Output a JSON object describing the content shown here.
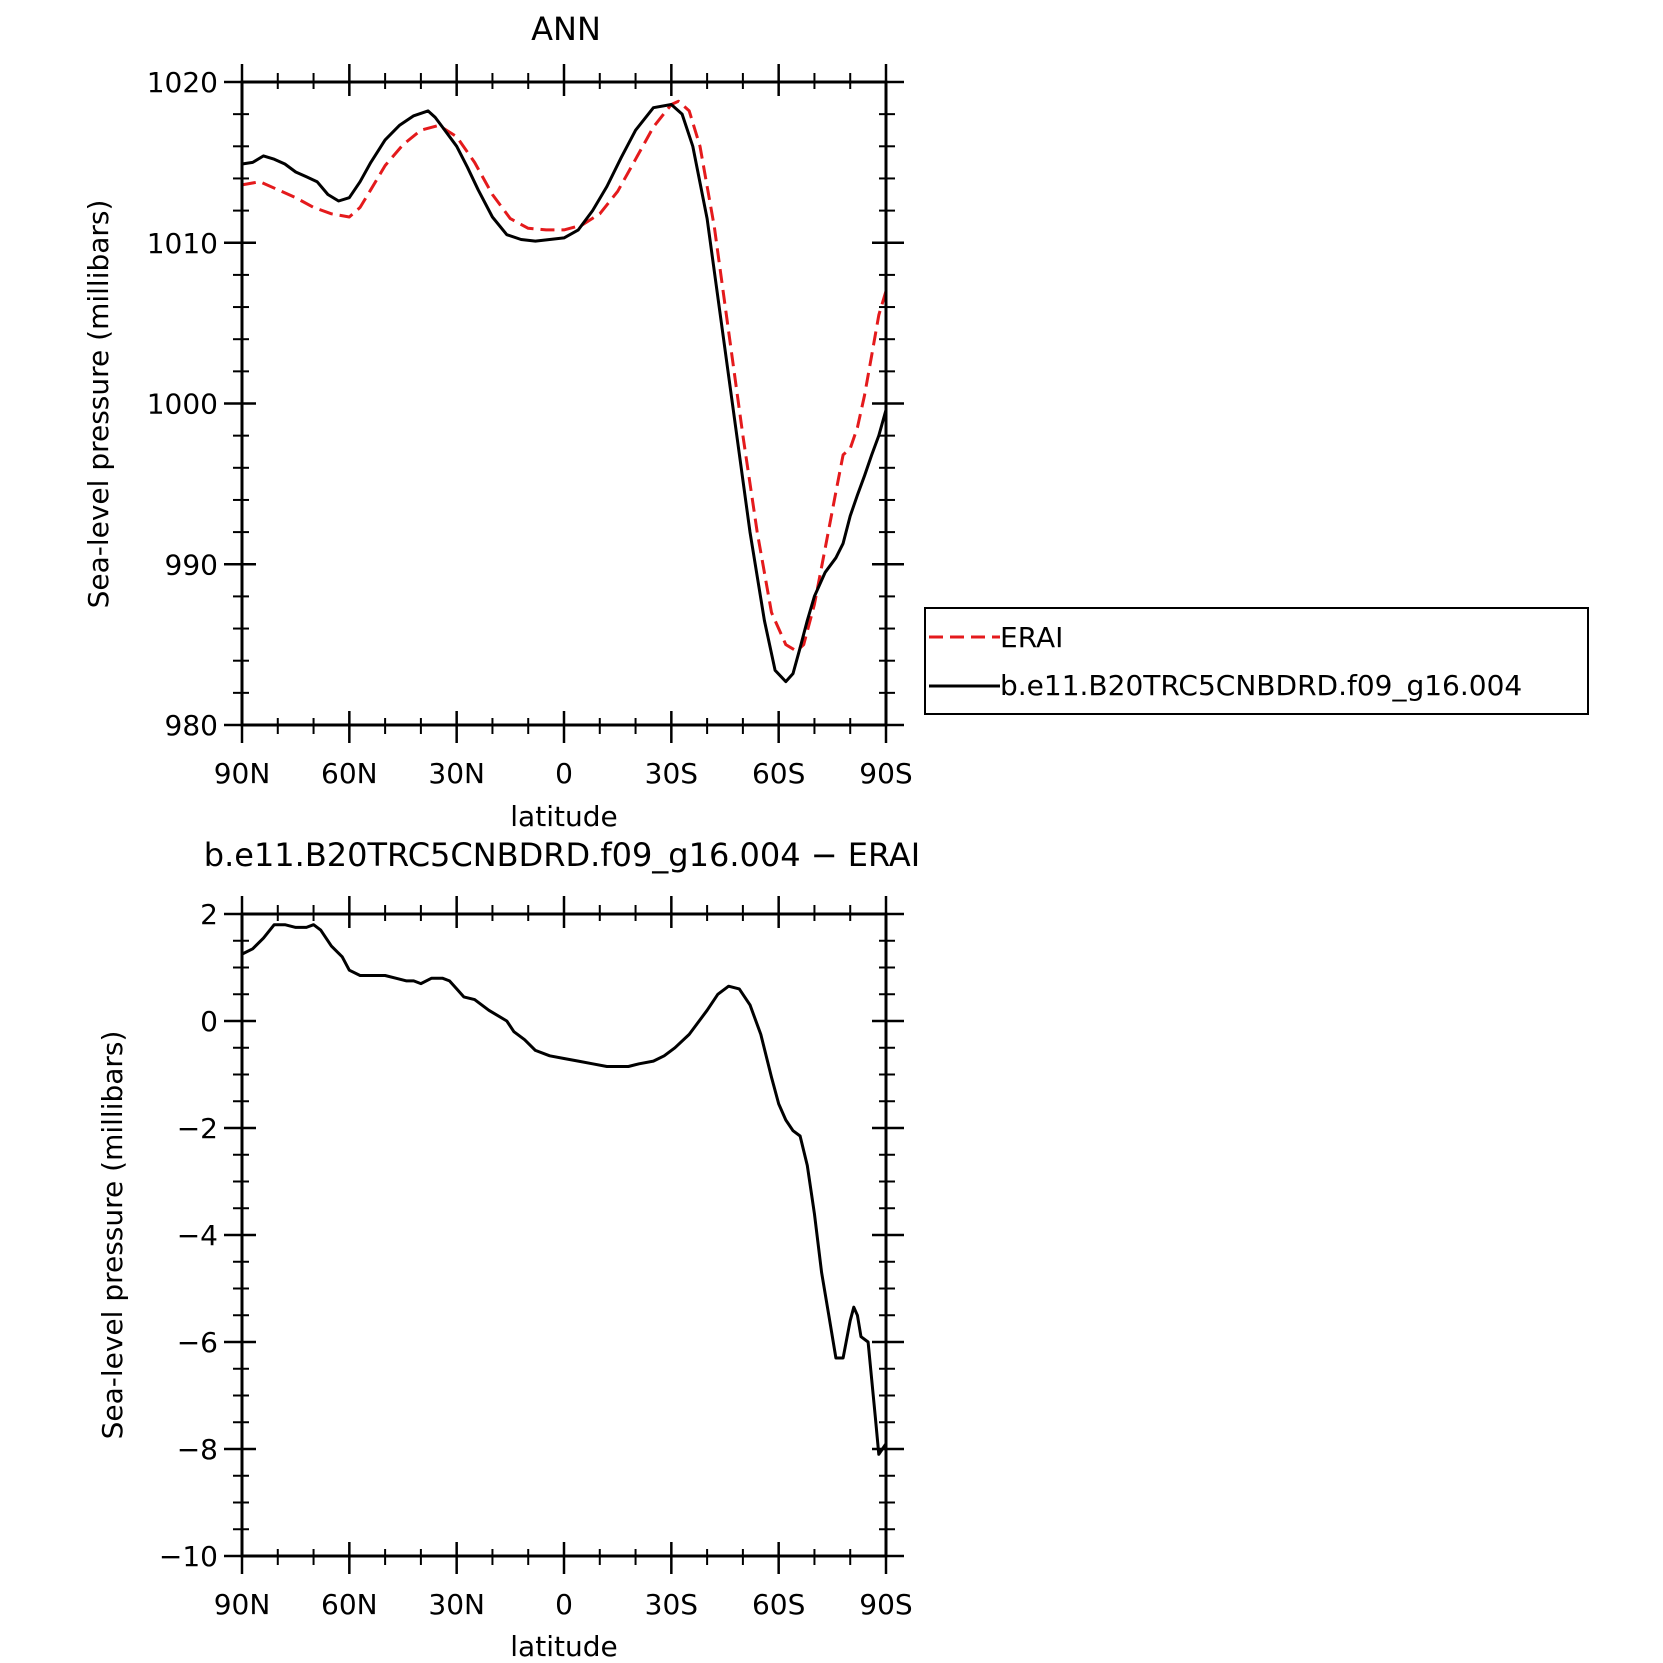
{
  "chart_data": [
    {
      "type": "line",
      "title": "ANN",
      "xlabel": "latitude",
      "ylabel": "Sea-level pressure (millibars)",
      "x_tick_labels": [
        "90N",
        "60N",
        "30N",
        "0",
        "30S",
        "60S",
        "90S"
      ],
      "x_tick_values": [
        90,
        60,
        30,
        0,
        -30,
        -60,
        -90
      ],
      "xlim": [
        90,
        -90
      ],
      "y_tick_labels": [
        "1020",
        "1010",
        "1000",
        "990",
        "980"
      ],
      "y_tick_values": [
        1020,
        1010,
        1000,
        990,
        980
      ],
      "ylim": [
        980,
        1020
      ],
      "legend": {
        "placement": "right"
      },
      "series": [
        {
          "name": "ERAI",
          "color": "#e41a1c",
          "style": "dashed",
          "x": [
            90,
            85,
            80,
            75,
            70,
            65,
            60,
            57,
            54,
            50,
            45,
            40,
            35,
            30,
            25,
            20,
            15,
            10,
            5,
            0,
            -5,
            -10,
            -15,
            -20,
            -25,
            -30,
            -32,
            -35,
            -38,
            -42,
            -46,
            -50,
            -54,
            -58,
            -62,
            -65,
            -67,
            -70,
            -73,
            -76,
            -78,
            -80,
            -82,
            -84,
            -86,
            -88,
            -90
          ],
          "y": [
            1013.6,
            1013.8,
            1013.3,
            1012.8,
            1012.2,
            1011.8,
            1011.6,
            1012.2,
            1013.3,
            1014.8,
            1016.1,
            1017.0,
            1017.3,
            1016.6,
            1015.0,
            1013.0,
            1011.5,
            1010.9,
            1010.8,
            1010.8,
            1011.1,
            1011.8,
            1013.2,
            1015.2,
            1017.2,
            1018.6,
            1018.8,
            1018.2,
            1016.0,
            1011.0,
            1004.5,
            998.0,
            992.0,
            987.0,
            985.0,
            984.6,
            985.0,
            987.5,
            991.0,
            994.5,
            996.8,
            997.2,
            998.5,
            1000.5,
            1003.0,
            1005.5,
            1007.0
          ]
        },
        {
          "name": "b.e11.B20TRC5CNBDRD.f09_g16.004",
          "color": "#000000",
          "style": "solid",
          "x": [
            90,
            87,
            84,
            81,
            78,
            75,
            72,
            69,
            66,
            63,
            60,
            57,
            54,
            50,
            46,
            42,
            38,
            36,
            34,
            30,
            27,
            24,
            20,
            16,
            12,
            8,
            4,
            0,
            -4,
            -8,
            -12,
            -16,
            -20,
            -25,
            -30,
            -33,
            -36,
            -40,
            -44,
            -48,
            -52,
            -56,
            -59,
            -62,
            -64,
            -66,
            -68,
            -70,
            -73,
            -76,
            -78,
            -80,
            -82,
            -84,
            -86,
            -88,
            -90
          ],
          "y": [
            1014.9,
            1015.0,
            1015.4,
            1015.2,
            1014.9,
            1014.4,
            1014.1,
            1013.8,
            1013.0,
            1012.6,
            1012.8,
            1013.8,
            1015.0,
            1016.4,
            1017.3,
            1017.9,
            1018.2,
            1017.8,
            1017.2,
            1016.0,
            1014.7,
            1013.3,
            1011.6,
            1010.5,
            1010.2,
            1010.1,
            1010.2,
            1010.3,
            1010.8,
            1012.0,
            1013.5,
            1015.3,
            1017.0,
            1018.4,
            1018.6,
            1018.0,
            1016.0,
            1011.5,
            1005.0,
            998.5,
            992.0,
            986.5,
            983.4,
            982.7,
            983.2,
            984.8,
            986.5,
            988.0,
            989.5,
            990.4,
            991.3,
            993.0,
            994.3,
            995.5,
            996.8,
            998.0,
            999.6
          ]
        }
      ]
    },
    {
      "type": "line",
      "title": "b.e11.B20TRC5CNBDRD.f09_g16.004 − ERAI",
      "xlabel": "latitude",
      "ylabel": "Sea-level pressure (millibars)",
      "x_tick_labels": [
        "90N",
        "60N",
        "30N",
        "0",
        "30S",
        "60S",
        "90S"
      ],
      "x_tick_values": [
        90,
        60,
        30,
        0,
        -30,
        -60,
        -90
      ],
      "xlim": [
        90,
        -90
      ],
      "y_tick_labels": [
        "2",
        "0",
        "−2",
        "−4",
        "−6",
        "−8",
        "−10"
      ],
      "y_tick_values": [
        2,
        0,
        -2,
        -4,
        -6,
        -8,
        -10
      ],
      "ylim": [
        -10,
        2
      ],
      "series": [
        {
          "color": "#000000",
          "style": "solid",
          "x": [
            90,
            87,
            84,
            81,
            78,
            75,
            72,
            70,
            68,
            65,
            62,
            60,
            57,
            54,
            50,
            47,
            44,
            42,
            40,
            37,
            34,
            32,
            30,
            28,
            25,
            21,
            16,
            14,
            11,
            8,
            4,
            0,
            -4,
            -8,
            -12,
            -15,
            -18,
            -21,
            -25,
            -28,
            -31,
            -35,
            -40,
            -43,
            -46,
            -49,
            -52,
            -55,
            -58,
            -60,
            -62,
            -64,
            -66,
            -68,
            -70,
            -72,
            -74,
            -76,
            -78,
            -80,
            -81,
            -82,
            -83,
            -85,
            -86,
            -87,
            -88,
            -89,
            -90
          ],
          "y": [
            1.25,
            1.35,
            1.55,
            1.8,
            1.8,
            1.75,
            1.75,
            1.8,
            1.7,
            1.4,
            1.2,
            0.95,
            0.85,
            0.85,
            0.85,
            0.8,
            0.75,
            0.75,
            0.7,
            0.8,
            0.8,
            0.75,
            0.6,
            0.45,
            0.4,
            0.2,
            0.0,
            -0.2,
            -0.35,
            -0.55,
            -0.65,
            -0.7,
            -0.75,
            -0.8,
            -0.85,
            -0.85,
            -0.85,
            -0.8,
            -0.75,
            -0.65,
            -0.5,
            -0.25,
            0.2,
            0.5,
            0.65,
            0.6,
            0.3,
            -0.25,
            -1.05,
            -1.55,
            -1.85,
            -2.05,
            -2.15,
            -2.7,
            -3.6,
            -4.7,
            -5.5,
            -6.3,
            -6.3,
            -5.6,
            -5.35,
            -5.5,
            -5.9,
            -6.0,
            -6.7,
            -7.4,
            -8.1,
            -8.0,
            -7.9
          ]
        }
      ]
    }
  ]
}
